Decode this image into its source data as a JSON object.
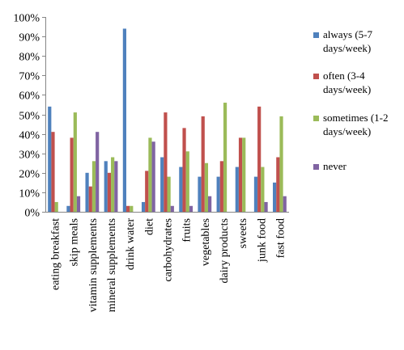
{
  "chart_data": {
    "type": "bar",
    "ylim": [
      0,
      100
    ],
    "y_ticks": [
      "0%",
      "10%",
      "20%",
      "30%",
      "40%",
      "50%",
      "60%",
      "70%",
      "80%",
      "90%",
      "100%"
    ],
    "grid": false,
    "legend_position": "right",
    "categories": [
      "eating breakfast",
      "skip meals",
      "vitamin supplements",
      "mineral supplements",
      "drink water",
      "diet",
      "carbohydrates",
      "fruits",
      "vegetables",
      "dairy products",
      "sweets",
      "junk food",
      "fast food"
    ],
    "series": [
      {
        "name": "always (5-7 days/week)",
        "legend_lines": [
          "always (5-7",
          "days/week)"
        ],
        "color": "#4F81BD",
        "values": [
          54,
          3,
          20,
          26,
          94,
          5,
          28,
          23,
          18,
          18,
          23,
          18,
          15
        ]
      },
      {
        "name": "often (3-4 days/week)",
        "legend_lines": [
          "often (3-4",
          "days/week)"
        ],
        "color": "#C0504D",
        "values": [
          41,
          38,
          13,
          20,
          3,
          21,
          51,
          43,
          49,
          26,
          38,
          54,
          28
        ]
      },
      {
        "name": "sometimes (1-2 days/week)",
        "legend_lines": [
          "sometimes (1-2",
          "days/week)"
        ],
        "color": "#9BBB59",
        "values": [
          5,
          51,
          26,
          28,
          3,
          38,
          18,
          31,
          25,
          56,
          38,
          23,
          49
        ]
      },
      {
        "name": "never",
        "legend_lines": [
          "never"
        ],
        "color": "#8064A2",
        "values": [
          0,
          8,
          41,
          26,
          0,
          36,
          3,
          3,
          8,
          0,
          0,
          5,
          8
        ]
      }
    ]
  }
}
